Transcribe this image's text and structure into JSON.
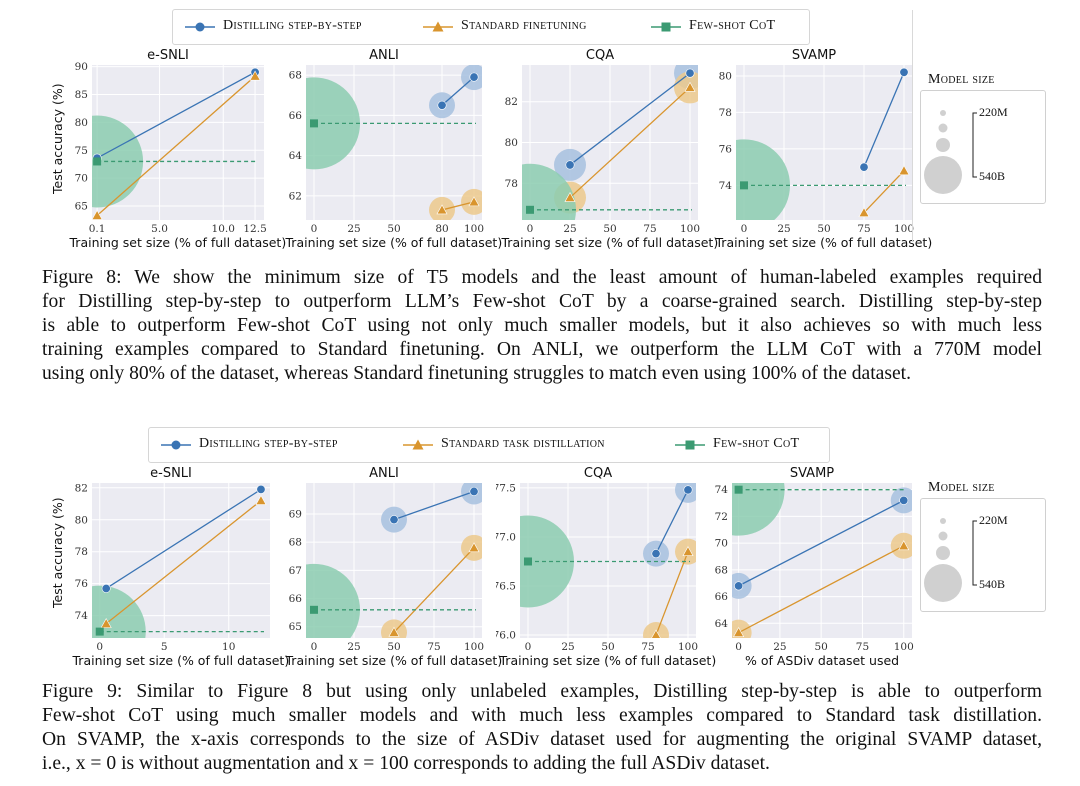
{
  "colors": {
    "distill": "#3a74b4",
    "standard": "#d9952e",
    "fewshot": "#3b9a72",
    "distill_bubble": "#a7c1df",
    "standard_bubble": "#ecc98c",
    "fewshot_bubble": "#8ccdb0",
    "plot_bg": "#ebebf2",
    "size_bubble": "#d0d0d0"
  },
  "figure8": {
    "legend": [
      {
        "label": "Distilling step-by-step",
        "marker": "circle",
        "series": "distill"
      },
      {
        "label": "Standard finetuning",
        "marker": "triangle",
        "series": "standard"
      },
      {
        "label": "Few-shot CoT",
        "marker": "square",
        "series": "fewshot"
      }
    ],
    "y_axis_label": "Test accuracy (%)",
    "size_legend": {
      "title": "Model size",
      "small": "220M",
      "large": "540B"
    },
    "caption": [
      "Figure 8: We show the minimum size of T5 models and the least amount of human-labeled examples required",
      "for Distilling step-by-step to outperform LLM’s Few-shot CoT by a coarse-grained search. Distilling step-by-step",
      "is able to outperform Few-shot CoT using not only much smaller models, but it also achieves so with much less",
      "training examples compared to Standard finetuning. On ANLI, we outperform the LLM CoT with a 770M model",
      "using only 80% of the dataset, whereas Standard finetuning struggles to match even using 100% of the dataset."
    ]
  },
  "figure9": {
    "legend": [
      {
        "label": "Distilling step-by-step",
        "marker": "circle",
        "series": "distill"
      },
      {
        "label": "Standard task distillation",
        "marker": "triangle",
        "series": "standard"
      },
      {
        "label": "Few-shot CoT",
        "marker": "square",
        "series": "fewshot"
      }
    ],
    "y_axis_label": "Test accuracy (%)",
    "size_legend": {
      "title": "Model size",
      "small": "220M",
      "large": "540B"
    },
    "caption": [
      "Figure 9: Similar to Figure 8 but using only unlabeled examples, Distilling step-by-step is able to outperform",
      "Few-shot CoT using much smaller models and with much less examples compared to Standard task distillation.",
      "On SVAMP, the x-axis corresponds to the size of ASDiv dataset used for augmenting the original SVAMP dataset,",
      "i.e., x = 0 is without augmentation and x = 100 corresponds to adding the full ASDiv dataset."
    ]
  },
  "chart_data": [
    {
      "figure": "Figure 8",
      "type": "scatter",
      "title": "e-SNLI",
      "xlabel": "Training set size (% of full dataset)",
      "ylabel": "Test accuracy (%)",
      "xlim": [
        -0.3,
        13.2
      ],
      "ylim": [
        62.5,
        90.3
      ],
      "xticks": [
        0.1,
        5.0,
        10.0,
        12.5
      ],
      "xticklabels": [
        "0.1",
        "5.0",
        "10.0",
        "12.5"
      ],
      "yticks": [
        65,
        70,
        75,
        80,
        85,
        90
      ],
      "series": [
        {
          "name": "Distilling step-by-step",
          "key": "distill",
          "points": [
            {
              "x": 0.1,
              "y": 73.6,
              "size": "small"
            },
            {
              "x": 12.5,
              "y": 89.0,
              "size": "small"
            }
          ]
        },
        {
          "name": "Standard finetuning",
          "key": "standard",
          "points": [
            {
              "x": 0.1,
              "y": 63.3,
              "size": "small"
            },
            {
              "x": 12.5,
              "y": 88.3,
              "size": "small"
            }
          ]
        },
        {
          "name": "Few-shot CoT",
          "key": "fewshot",
          "points": [
            {
              "x": 0.1,
              "y": 73.0,
              "size": "large"
            }
          ],
          "hline": true
        }
      ]
    },
    {
      "figure": "Figure 8",
      "type": "scatter",
      "title": "ANLI",
      "xlabel": "Training set size (% of full dataset)",
      "ylabel": "",
      "xlim": [
        -5,
        105
      ],
      "ylim": [
        60.8,
        68.5
      ],
      "xticks": [
        0,
        25,
        50,
        80,
        100
      ],
      "xticklabels": [
        "0",
        "25",
        "50",
        "80",
        "100"
      ],
      "yticks": [
        62,
        64,
        66,
        68
      ],
      "series": [
        {
          "name": "Distilling step-by-step",
          "key": "distill",
          "points": [
            {
              "x": 80,
              "y": 66.5,
              "size": "medium"
            },
            {
              "x": 100,
              "y": 67.9,
              "size": "medium"
            }
          ]
        },
        {
          "name": "Standard finetuning",
          "key": "standard",
          "points": [
            {
              "x": 80,
              "y": 61.3,
              "size": "medium"
            },
            {
              "x": 100,
              "y": 61.7,
              "size": "medium"
            }
          ]
        },
        {
          "name": "Few-shot CoT",
          "key": "fewshot",
          "points": [
            {
              "x": 0,
              "y": 65.6,
              "size": "large"
            }
          ],
          "hline": true
        }
      ]
    },
    {
      "figure": "Figure 8",
      "type": "scatter",
      "title": "CQA",
      "xlabel": "Training set size (% of full dataset)",
      "ylabel": "",
      "xlim": [
        -5,
        105
      ],
      "ylim": [
        76.2,
        83.8
      ],
      "xticks": [
        0,
        25,
        50,
        75,
        100
      ],
      "xticklabels": [
        "0",
        "25",
        "50",
        "75",
        "100"
      ],
      "yticks": [
        78,
        80,
        82
      ],
      "series": [
        {
          "name": "Distilling step-by-step",
          "key": "distill",
          "points": [
            {
              "x": 25,
              "y": 78.9,
              "size": "large-ish"
            },
            {
              "x": 100,
              "y": 83.4,
              "size": "large-ish"
            }
          ]
        },
        {
          "name": "Standard finetuning",
          "key": "standard",
          "points": [
            {
              "x": 25,
              "y": 77.3,
              "size": "large-ish"
            },
            {
              "x": 100,
              "y": 82.7,
              "size": "large-ish"
            }
          ]
        },
        {
          "name": "Few-shot CoT",
          "key": "fewshot",
          "points": [
            {
              "x": 0,
              "y": 76.7,
              "size": "large"
            }
          ],
          "hline": true
        }
      ]
    },
    {
      "figure": "Figure 8",
      "type": "scatter",
      "title": "SVAMP",
      "xlabel": "Training set size (% of full dataset)",
      "ylabel": "",
      "xlim": [
        -5,
        105
      ],
      "ylim": [
        72.1,
        80.6
      ],
      "xticks": [
        0,
        25,
        50,
        75,
        100
      ],
      "xticklabels": [
        "0",
        "25",
        "50",
        "75",
        "100"
      ],
      "yticks": [
        74,
        76,
        78,
        80
      ],
      "series": [
        {
          "name": "Distilling step-by-step",
          "key": "distill",
          "points": [
            {
              "x": 75,
              "y": 75.0,
              "size": "small"
            },
            {
              "x": 100,
              "y": 80.2,
              "size": "small"
            }
          ]
        },
        {
          "name": "Standard finetuning",
          "key": "standard",
          "points": [
            {
              "x": 75,
              "y": 72.5,
              "size": "small"
            },
            {
              "x": 100,
              "y": 74.8,
              "size": "small"
            }
          ]
        },
        {
          "name": "Few-shot CoT",
          "key": "fewshot",
          "points": [
            {
              "x": 0,
              "y": 74.0,
              "size": "large"
            }
          ],
          "hline": true
        }
      ]
    },
    {
      "figure": "Figure 9",
      "type": "scatter",
      "title": "e-SNLI",
      "xlabel": "Training set size (% of full dataset)",
      "ylabel": "Test accuracy (%)",
      "xlim": [
        -0.6,
        13.2
      ],
      "ylim": [
        72.6,
        82.3
      ],
      "xticks": [
        0,
        5,
        10
      ],
      "xticklabels": [
        "0",
        "5",
        "10"
      ],
      "yticks": [
        74,
        76,
        78,
        80,
        82
      ],
      "series": [
        {
          "name": "Distilling step-by-step",
          "key": "distill",
          "points": [
            {
              "x": 0.5,
              "y": 75.7,
              "size": "small"
            },
            {
              "x": 12.5,
              "y": 81.9,
              "size": "small"
            }
          ]
        },
        {
          "name": "Standard task distillation",
          "key": "standard",
          "points": [
            {
              "x": 0.5,
              "y": 73.5,
              "size": "small"
            },
            {
              "x": 12.5,
              "y": 81.2,
              "size": "small"
            }
          ]
        },
        {
          "name": "Few-shot CoT",
          "key": "fewshot",
          "points": [
            {
              "x": 0,
              "y": 73.0,
              "size": "large"
            }
          ],
          "hline": true
        }
      ]
    },
    {
      "figure": "Figure 9",
      "type": "scatter",
      "title": "ANLI",
      "xlabel": "Training set size (% of full dataset)",
      "ylabel": "",
      "xlim": [
        -5,
        105
      ],
      "ylim": [
        64.6,
        70.1
      ],
      "xticks": [
        0,
        25,
        50,
        75,
        100
      ],
      "xticklabels": [
        "0",
        "25",
        "50",
        "75",
        "100"
      ],
      "yticks": [
        65,
        66,
        67,
        68,
        69
      ],
      "series": [
        {
          "name": "Distilling step-by-step",
          "key": "distill",
          "points": [
            {
              "x": 50,
              "y": 68.8,
              "size": "medium"
            },
            {
              "x": 100,
              "y": 69.8,
              "size": "medium"
            }
          ]
        },
        {
          "name": "Standard task distillation",
          "key": "standard",
          "points": [
            {
              "x": 50,
              "y": 64.8,
              "size": "medium"
            },
            {
              "x": 100,
              "y": 67.8,
              "size": "medium"
            }
          ]
        },
        {
          "name": "Few-shot CoT",
          "key": "fewshot",
          "points": [
            {
              "x": 0,
              "y": 65.6,
              "size": "large"
            }
          ],
          "hline": true
        }
      ]
    },
    {
      "figure": "Figure 9",
      "type": "scatter",
      "title": "CQA",
      "xlabel": "Training set size (% of full dataset)",
      "ylabel": "",
      "xlim": [
        -5,
        105
      ],
      "ylim": [
        75.97,
        77.55
      ],
      "xticks": [
        0,
        25,
        50,
        75,
        100
      ],
      "xticklabels": [
        "0",
        "25",
        "50",
        "75",
        "100"
      ],
      "yticks": [
        76.0,
        76.5,
        77.0,
        77.5
      ],
      "yticklabels": [
        "76.0",
        "76.5",
        "77.0",
        "77.5"
      ],
      "series": [
        {
          "name": "Distilling step-by-step",
          "key": "distill",
          "points": [
            {
              "x": 80,
              "y": 76.83,
              "size": "medium"
            },
            {
              "x": 100,
              "y": 77.48,
              "size": "medium"
            }
          ]
        },
        {
          "name": "Standard task distillation",
          "key": "standard",
          "points": [
            {
              "x": 80,
              "y": 76.0,
              "size": "medium"
            },
            {
              "x": 100,
              "y": 76.85,
              "size": "medium"
            }
          ]
        },
        {
          "name": "Few-shot CoT",
          "key": "fewshot",
          "points": [
            {
              "x": 0,
              "y": 76.75,
              "size": "large"
            }
          ],
          "hline": true
        }
      ]
    },
    {
      "figure": "Figure 9",
      "type": "scatter",
      "title": "SVAMP",
      "xlabel": "% of ASDiv dataset used",
      "ylabel": "",
      "xlim": [
        -4,
        105
      ],
      "ylim": [
        62.9,
        74.5
      ],
      "xticks": [
        0,
        25,
        50,
        75,
        100
      ],
      "xticklabels": [
        "0",
        "25",
        "50",
        "75",
        "100"
      ],
      "yticks": [
        64,
        66,
        68,
        70,
        72,
        74
      ],
      "series": [
        {
          "name": "Distilling step-by-step",
          "key": "distill",
          "points": [
            {
              "x": 0,
              "y": 66.8,
              "size": "medium"
            },
            {
              "x": 100,
              "y": 73.2,
              "size": "medium"
            }
          ]
        },
        {
          "name": "Standard task distillation",
          "key": "standard",
          "points": [
            {
              "x": 0,
              "y": 63.3,
              "size": "medium"
            },
            {
              "x": 100,
              "y": 69.8,
              "size": "medium"
            }
          ]
        },
        {
          "name": "Few-shot CoT",
          "key": "fewshot",
          "points": [
            {
              "x": 0,
              "y": 74.0,
              "size": "large"
            }
          ],
          "hline": true
        }
      ]
    }
  ]
}
